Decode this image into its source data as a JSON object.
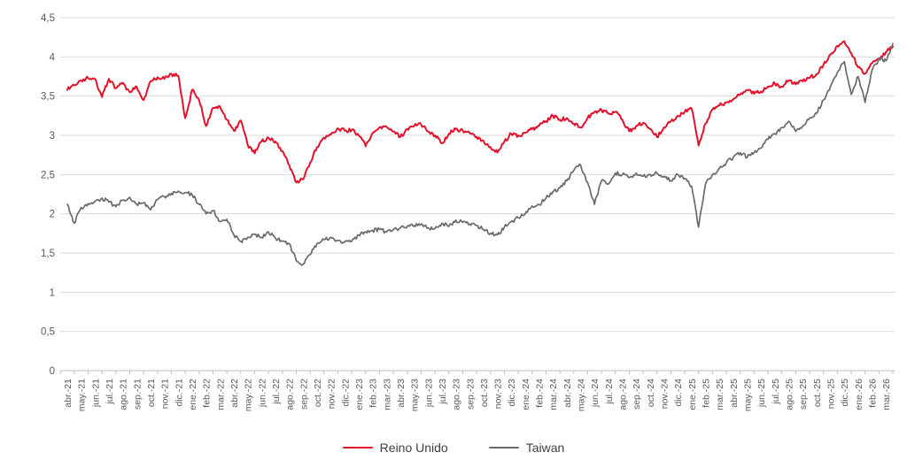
{
  "chart_data": {
    "type": "line",
    "title": "",
    "xlabel": "",
    "ylabel": "",
    "grid": "horizontal",
    "legend_position": "bottom-center",
    "decimal_separator": ",",
    "ylim": [
      0,
      4.5
    ],
    "y_ticks": {
      "values": [
        0,
        0.5,
        1,
        1.5,
        2,
        2.5,
        3,
        3.5,
        4,
        4.5
      ],
      "labels": [
        "0",
        "0,5",
        "1",
        "1,5",
        "2",
        "2,5",
        "3",
        "3,5",
        "4",
        "4,5"
      ]
    },
    "x_tick_labels": [
      "abr.-21",
      "may.-21",
      "jun.-21",
      "jul.-21",
      "ago.-21",
      "sep.-21",
      "oct.-21",
      "nov.-21",
      "dic.-21",
      "ene.-22",
      "feb.-22",
      "mar.-22",
      "abr.-22",
      "may.-22",
      "jun.-22",
      "jul.-22",
      "ago.-22",
      "sep.-22",
      "oct.-22",
      "nov.-22",
      "dic.-22",
      "ene.-23",
      "feb.-23",
      "mar.-23",
      "abr.-23",
      "may.-23",
      "jun.-23",
      "jul.-23",
      "ago.-23",
      "sep.-23",
      "oct.-23",
      "nov.-23",
      "dic.-23",
      "ene.-24",
      "feb.-24",
      "mar.-24",
      "abr.-24",
      "may.-24",
      "jun.-24",
      "jul.-24",
      "ago.-24",
      "sep.-24",
      "oct.-24",
      "nov.-24",
      "dic.-24",
      "ene.-25",
      "feb.-25",
      "mar.-25",
      "abr.-25",
      "may.-25",
      "jun.-25",
      "jul.-25",
      "ago.-25",
      "sep.-25",
      "oct.-25",
      "nov.-25",
      "dic.-25",
      "ene.-26",
      "feb.-26",
      "mar.-26"
    ],
    "points_per_month": 2,
    "axis_color": "#bfbfbf",
    "gridline_color": "#d9d9d9",
    "tick_label_color": "#595959",
    "series": [
      {
        "name": "Reino Unido",
        "color": "#e2122b",
        "line_width": 2,
        "values": [
          3.58,
          3.64,
          3.7,
          3.73,
          3.72,
          3.49,
          3.72,
          3.6,
          3.67,
          3.55,
          3.62,
          3.45,
          3.69,
          3.74,
          3.72,
          3.78,
          3.76,
          3.22,
          3.58,
          3.45,
          3.12,
          3.35,
          3.37,
          3.2,
          3.06,
          3.19,
          2.88,
          2.77,
          2.92,
          2.97,
          2.92,
          2.8,
          2.62,
          2.4,
          2.44,
          2.65,
          2.85,
          2.97,
          3.01,
          3.09,
          3.06,
          3.07,
          3.0,
          2.86,
          3.03,
          3.1,
          3.11,
          3.05,
          2.98,
          3.08,
          3.12,
          3.14,
          3.05,
          3.0,
          2.9,
          3.02,
          3.08,
          3.06,
          3.03,
          2.98,
          2.93,
          2.85,
          2.78,
          2.92,
          3.02,
          3.0,
          3.03,
          3.08,
          3.12,
          3.18,
          3.25,
          3.2,
          3.22,
          3.15,
          3.1,
          3.22,
          3.3,
          3.32,
          3.28,
          3.3,
          3.2,
          3.05,
          3.12,
          3.16,
          3.08,
          2.98,
          3.1,
          3.18,
          3.25,
          3.3,
          3.34,
          2.87,
          3.15,
          3.33,
          3.38,
          3.42,
          3.46,
          3.52,
          3.58,
          3.53,
          3.56,
          3.62,
          3.66,
          3.62,
          3.7,
          3.65,
          3.69,
          3.73,
          3.78,
          3.9,
          4.03,
          4.14,
          4.2,
          4.05,
          3.87,
          3.79,
          3.92,
          3.98,
          4.06,
          4.13
        ]
      },
      {
        "name": "Taiwan",
        "color": "#6a6a6a",
        "line_width": 1.7,
        "values": [
          2.12,
          1.88,
          2.08,
          2.13,
          2.16,
          2.2,
          2.15,
          2.09,
          2.17,
          2.21,
          2.12,
          2.14,
          2.05,
          2.18,
          2.22,
          2.26,
          2.29,
          2.27,
          2.24,
          2.12,
          2.0,
          2.04,
          1.9,
          1.93,
          1.73,
          1.65,
          1.7,
          1.74,
          1.7,
          1.77,
          1.69,
          1.65,
          1.62,
          1.4,
          1.36,
          1.48,
          1.62,
          1.67,
          1.7,
          1.66,
          1.64,
          1.65,
          1.73,
          1.77,
          1.79,
          1.8,
          1.77,
          1.8,
          1.82,
          1.84,
          1.85,
          1.87,
          1.82,
          1.81,
          1.88,
          1.84,
          1.92,
          1.89,
          1.87,
          1.85,
          1.8,
          1.75,
          1.73,
          1.83,
          1.9,
          1.95,
          2.0,
          2.1,
          2.12,
          2.2,
          2.28,
          2.33,
          2.42,
          2.55,
          2.62,
          2.4,
          2.12,
          2.42,
          2.38,
          2.52,
          2.5,
          2.46,
          2.52,
          2.48,
          2.5,
          2.52,
          2.48,
          2.42,
          2.5,
          2.45,
          2.35,
          1.83,
          2.38,
          2.5,
          2.58,
          2.65,
          2.72,
          2.78,
          2.72,
          2.78,
          2.84,
          2.95,
          3.02,
          3.1,
          3.18,
          3.05,
          3.12,
          3.22,
          3.28,
          3.45,
          3.62,
          3.8,
          3.94,
          3.52,
          3.75,
          3.42,
          3.83,
          3.98,
          3.95,
          4.17
        ]
      }
    ]
  },
  "legend": {
    "items": [
      {
        "label": "Reino Unido"
      },
      {
        "label": "Taiwan"
      }
    ]
  }
}
